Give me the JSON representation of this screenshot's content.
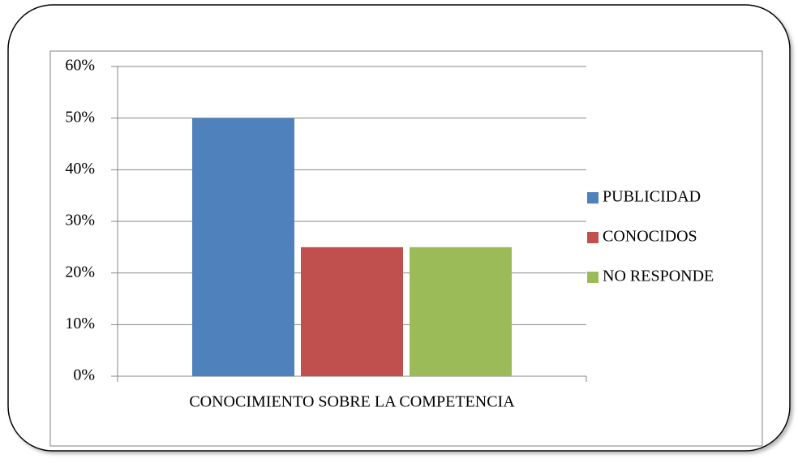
{
  "chart_data": {
    "type": "bar",
    "categories": [
      "CONOCIMIENTO SOBRE LA COMPETENCIA"
    ],
    "series": [
      {
        "name": "PUBLICIDAD",
        "color": "#4f81bd",
        "values": [
          50
        ]
      },
      {
        "name": "CONOCIDOS",
        "color": "#c0504d",
        "values": [
          25
        ]
      },
      {
        "name": "NO RESPONDE",
        "color": "#9bbb59",
        "values": [
          25
        ]
      }
    ],
    "ylim": [
      0,
      60
    ],
    "yticks": [
      {
        "value": 0,
        "label": "0%"
      },
      {
        "value": 10,
        "label": "10%"
      },
      {
        "value": 20,
        "label": "20%"
      },
      {
        "value": 30,
        "label": "30%"
      },
      {
        "value": 40,
        "label": "40%"
      },
      {
        "value": 50,
        "label": "50%"
      },
      {
        "value": 60,
        "label": "60%"
      }
    ],
    "grid": true,
    "legend": "right"
  }
}
